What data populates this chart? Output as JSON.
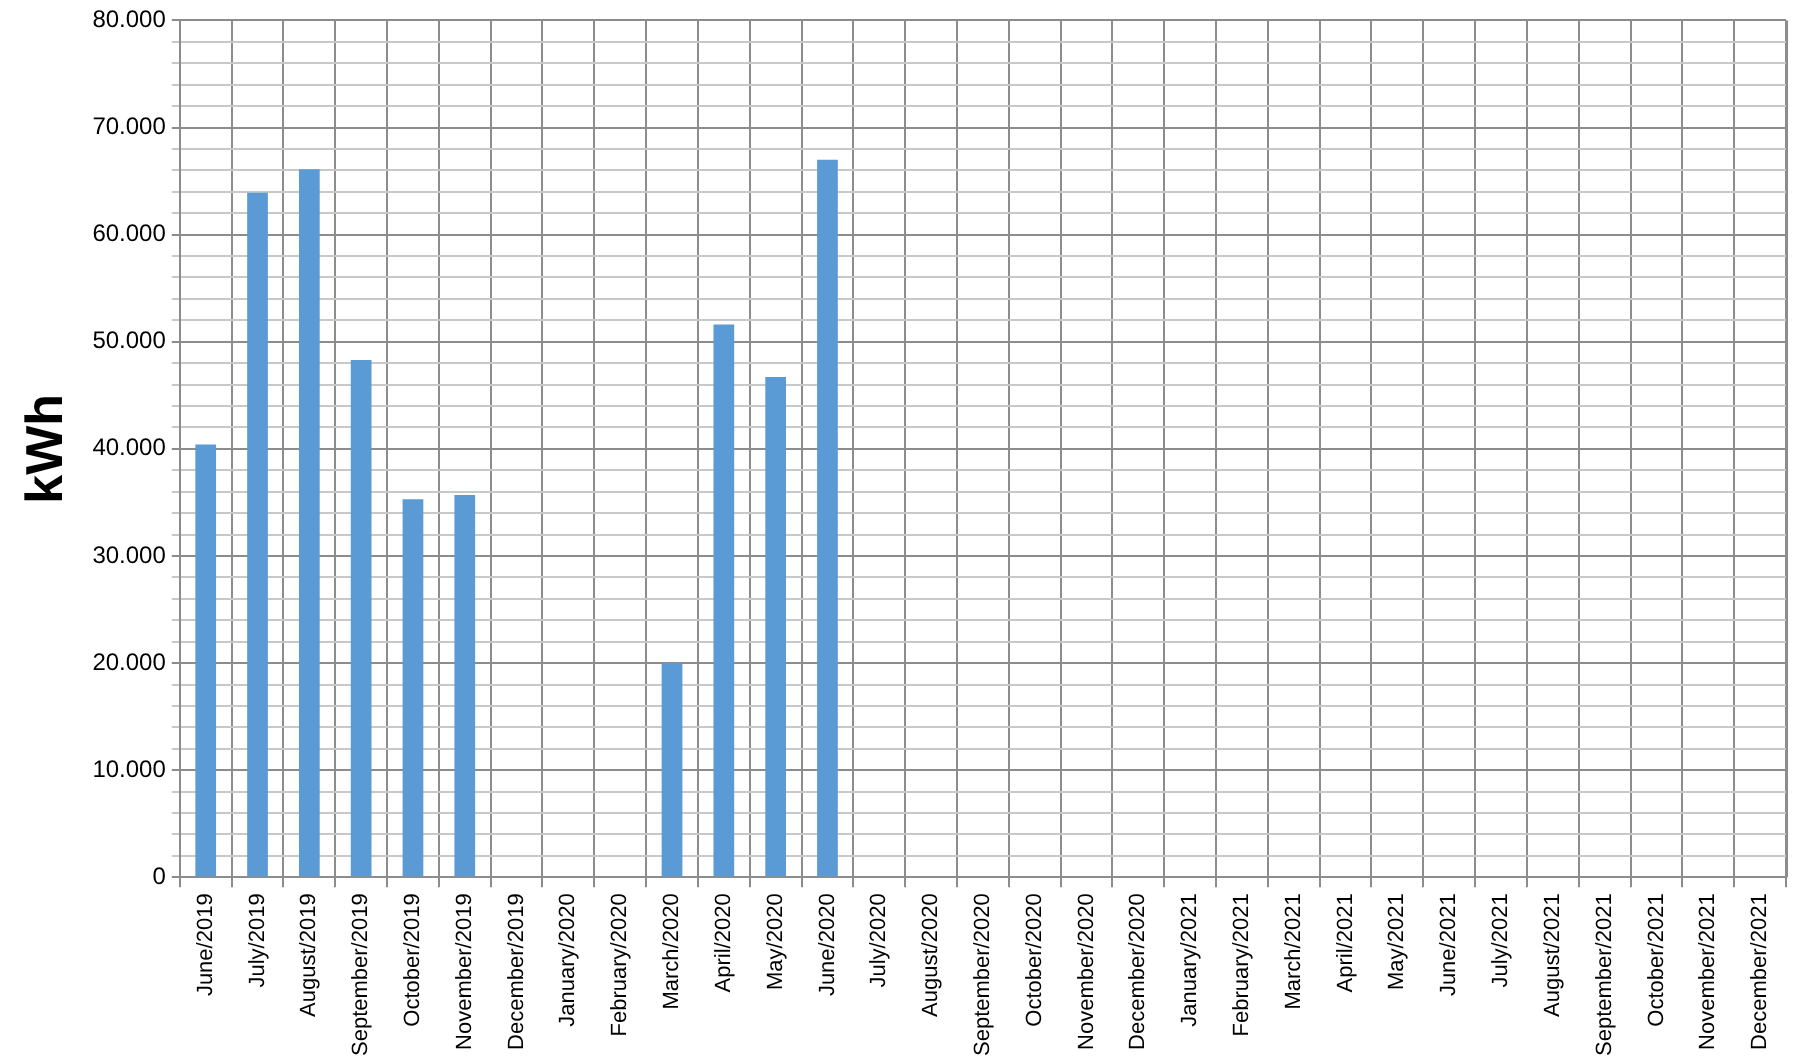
{
  "chart_data": {
    "type": "bar",
    "ylabel": "kWh",
    "categories": [
      "June/2019",
      "July/2019",
      "August/2019",
      "September/2019",
      "October/2019",
      "November/2019",
      "December/2019",
      "January/2020",
      "February/2020",
      "March/2020",
      "April/2020",
      "May/2020",
      "June/2020",
      "July/2020",
      "August/2020",
      "September/2020",
      "October/2020",
      "November/2020",
      "December/2020",
      "January/2021",
      "February/2021",
      "March/2021",
      "April/2021",
      "May/2021",
      "June/2021",
      "July/2021",
      "August/2021",
      "September/2021",
      "October/2021",
      "November/2021",
      "December/2021"
    ],
    "values": [
      40400,
      63900,
      66100,
      48300,
      35300,
      35700,
      null,
      null,
      null,
      20000,
      51600,
      46700,
      67000,
      null,
      null,
      null,
      null,
      null,
      null,
      null,
      null,
      null,
      null,
      null,
      null,
      null,
      null,
      null,
      null,
      null,
      null
    ],
    "color": "#5b9bd5",
    "ylim": [
      0,
      80000
    ],
    "yticks": [
      {
        "value": 0,
        "label": "0"
      },
      {
        "value": 2000,
        "label": null
      },
      {
        "value": 4000,
        "label": null
      },
      {
        "value": 6000,
        "label": null
      },
      {
        "value": 8000,
        "label": null
      },
      {
        "value": 10000,
        "label": "10.000"
      },
      {
        "value": 12000,
        "label": null
      },
      {
        "value": 14000,
        "label": null
      },
      {
        "value": 16000,
        "label": null
      },
      {
        "value": 18000,
        "label": null
      },
      {
        "value": 20000,
        "label": "20.000"
      },
      {
        "value": 22000,
        "label": null
      },
      {
        "value": 24000,
        "label": null
      },
      {
        "value": 26000,
        "label": null
      },
      {
        "value": 28000,
        "label": null
      },
      {
        "value": 30000,
        "label": "30.000"
      },
      {
        "value": 32000,
        "label": null
      },
      {
        "value": 34000,
        "label": null
      },
      {
        "value": 36000,
        "label": null
      },
      {
        "value": 38000,
        "label": null
      },
      {
        "value": 40000,
        "label": "40.000"
      },
      {
        "value": 42000,
        "label": null
      },
      {
        "value": 44000,
        "label": null
      },
      {
        "value": 46000,
        "label": null
      },
      {
        "value": 48000,
        "label": null
      },
      {
        "value": 50000,
        "label": "50.000"
      },
      {
        "value": 52000,
        "label": null
      },
      {
        "value": 54000,
        "label": null
      },
      {
        "value": 56000,
        "label": null
      },
      {
        "value": 58000,
        "label": null
      },
      {
        "value": 60000,
        "label": "60.000"
      },
      {
        "value": 62000,
        "label": null
      },
      {
        "value": 64000,
        "label": null
      },
      {
        "value": 66000,
        "label": null
      },
      {
        "value": 68000,
        "label": null
      },
      {
        "value": 70000,
        "label": "70.000"
      },
      {
        "value": 72000,
        "label": null
      },
      {
        "value": 74000,
        "label": null
      },
      {
        "value": 76000,
        "label": null
      },
      {
        "value": 78000,
        "label": null
      },
      {
        "value": 80000,
        "label": "80.000"
      }
    ],
    "grid": true,
    "legend": false
  }
}
